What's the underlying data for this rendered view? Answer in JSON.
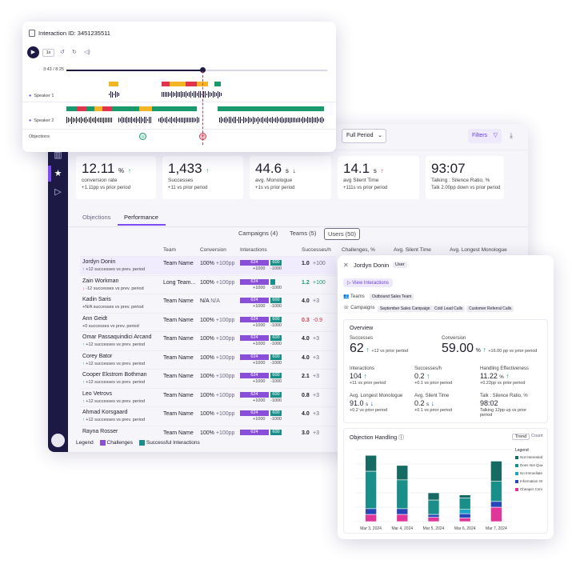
{
  "player": {
    "title": "Interaction ID: 3451235511",
    "speed": "1x",
    "time": "3:43 / 8:25",
    "speaker1": "Speaker 1",
    "speaker2": "Speaker 2",
    "objections_label": "Objections",
    "progress": 0.52
  },
  "toolbar": {
    "period": "Full Period",
    "filters": "Filters"
  },
  "kpis": [
    {
      "value": "12.11",
      "unit": "%",
      "arrow": "↑",
      "trend": "up",
      "label": "conversion rate",
      "delta": "+1.11pp vs prior period"
    },
    {
      "value": "1,433",
      "unit": "",
      "arrow": "↑",
      "trend": "up",
      "label": "Successes",
      "delta": "+11 vs prior period"
    },
    {
      "value": "44.6",
      "unit": "s",
      "arrow": "↓",
      "trend": "down",
      "label": "avg. Monologue",
      "delta": "+1s vs prior period"
    },
    {
      "value": "14.1",
      "unit": "s",
      "arrow": "↑",
      "trend": "bad",
      "label": "avg Silent Time",
      "delta": "+111s vs prior period"
    },
    {
      "value": "93:07",
      "unit": "",
      "arrow": "",
      "trend": "",
      "label": "Talking : Silence Ratio, %",
      "delta": "Talk 2.00pp down vs prior period"
    }
  ],
  "tabs": {
    "objections": "Objections",
    "performance": "Performance"
  },
  "segments": {
    "campaigns": "Campaigns (4)",
    "teams": "Teams (5)",
    "users": "Users (50)"
  },
  "table": {
    "headers": {
      "team": "Team",
      "conversion": "Conversion",
      "interactions": "Interactions",
      "successes": "Successes/h",
      "challenges": "Challenges, %",
      "silent": "Avg. Silent Time",
      "longest": "Avg. Longest Monologue"
    },
    "rows": [
      {
        "name": "Jordyn Donin",
        "arrow": "↑",
        "sub": "+12 successes vs prev. period",
        "team": "Team Name",
        "conv": "100%",
        "conv_d": "+100pp",
        "b1": "624",
        "b2": "600",
        "b1d": "+1000",
        "b2d": "-1000",
        "succ": "1.0",
        "succ_d": "+100",
        "succ_c": "",
        "sel": true
      },
      {
        "name": "Zain Workman",
        "arrow": "↓",
        "sub": "-12 successes vs prev. period",
        "team": "Long Team...",
        "conv": "100%",
        "conv_d": "+100pp",
        "b1": "624",
        "b2": "",
        "b1d": "+1000",
        "b2d": "-1000",
        "succ": "1.2",
        "succ_d": "+100",
        "succ_c": "up",
        "sel": false
      },
      {
        "name": "Kadin Saris",
        "arrow": "",
        "sub": "+N/A successes vs prev. period",
        "team": "Team Name",
        "conv": "N/A",
        "conv_d": "N/A",
        "b1": "624",
        "b2": "600",
        "b1d": "+1000",
        "b2d": "-1000",
        "succ": "4.0",
        "succ_d": "+3",
        "succ_c": "",
        "sel": false
      },
      {
        "name": "Ann Geidt",
        "arrow": "",
        "sub": "+0 successes vs prev. period",
        "team": "Team Name",
        "conv": "100%",
        "conv_d": "+100pp",
        "b1": "624",
        "b2": "600",
        "b1d": "+1000",
        "b2d": "-1000",
        "succ": "0.3",
        "succ_d": "-0.9",
        "succ_c": "bad",
        "sel": false
      },
      {
        "name": "Omar Passaquindici Arcand",
        "arrow": "↑",
        "sub": "+12 successes vs prev. period",
        "team": "Team Name",
        "conv": "100%",
        "conv_d": "+100pp",
        "b1": "624",
        "b2": "600",
        "b1d": "+1000",
        "b2d": "-1000",
        "succ": "4.0",
        "succ_d": "+3",
        "succ_c": "",
        "sel": false
      },
      {
        "name": "Corey Bator",
        "arrow": "↑",
        "sub": "+12 successes vs prev. period",
        "team": "Team Name",
        "conv": "100%",
        "conv_d": "+100pp",
        "b1": "624",
        "b2": "600",
        "b1d": "+1000",
        "b2d": "-1000",
        "succ": "4.0",
        "succ_d": "+3",
        "succ_c": "",
        "sel": false
      },
      {
        "name": "Cooper Ekstrom Bothman",
        "arrow": "↑",
        "sub": "+12 successes vs prev. period",
        "team": "Team Name",
        "conv": "100%",
        "conv_d": "+100pp",
        "b1": "624",
        "b2": "600",
        "b1d": "+1000",
        "b2d": "-1000",
        "succ": "2.1",
        "succ_d": "+3",
        "succ_c": "",
        "sel": false
      },
      {
        "name": "Leo Vetrovs",
        "arrow": "↑",
        "sub": "+12 successes vs prev. period",
        "team": "Team Name",
        "conv": "100%",
        "conv_d": "+100pp",
        "b1": "624",
        "b2": "600",
        "b1d": "+1000",
        "b2d": "-1000",
        "succ": "0.8",
        "succ_d": "+3",
        "succ_c": "",
        "sel": false
      },
      {
        "name": "Ahmad Korsgaard",
        "arrow": "↑",
        "sub": "+12 successes vs prev. period",
        "team": "Team Name",
        "conv": "100%",
        "conv_d": "+100pp",
        "b1": "624",
        "b2": "600",
        "b1d": "+1000",
        "b2d": "-1000",
        "succ": "4.0",
        "succ_d": "+3",
        "succ_c": "",
        "sel": false
      },
      {
        "name": "Rayna Rosser",
        "arrow": "",
        "sub": "",
        "team": "Team Name",
        "conv": "100%",
        "conv_d": "+100pp",
        "b1": "624",
        "b2": "600",
        "b1d": "",
        "b2d": "",
        "succ": "3.0",
        "succ_d": "+3",
        "succ_c": "",
        "sel": false
      }
    ]
  },
  "legend": {
    "title": "Legend",
    "challenges": "Challenges",
    "successful": "Successful Interactions"
  },
  "panel": {
    "name": "Jordyn Donin",
    "badge": "User",
    "view": "View Interactions",
    "teams_label": "Teams",
    "team": "Outbound Sales Team",
    "campaigns_label": "Campaigns",
    "campaigns": [
      "September Sales Campaign",
      "Cold Lead Calls",
      "Customer Referral Calls"
    ],
    "overview": {
      "title": "Overview",
      "successes": {
        "label": "Successes",
        "value": "62",
        "arrow": "↑",
        "delta": "+12 vs prior period"
      },
      "conversion": {
        "label": "Conversion",
        "value": "59.00",
        "unit": "%",
        "arrow": "↑",
        "delta": "+16.00 pp vs prior period"
      },
      "interactions": {
        "label": "Interactions",
        "value": "104",
        "arrow": "↑",
        "delta": "+11 vs prior period"
      },
      "succ_h": {
        "label": "Successes/h",
        "value": "0.2",
        "arrow": "↑",
        "delta": "+0.1 vs prior period"
      },
      "handling": {
        "label": "Handling Effectiveness",
        "value": "11.22",
        "unit": "%",
        "arrow": "↑",
        "delta": "+0.22pp vs prior period"
      },
      "monologue": {
        "label": "Avg. Longest Monologue",
        "value": "91.0",
        "unit": "s",
        "arrow": "↓",
        "delta": "+0.2 vs prior period"
      },
      "silent": {
        "label": "Avg. Silent Time",
        "value": "0.2",
        "unit": "s",
        "arrow": "↓",
        "delta": "+0.1 vs prior period"
      },
      "ratio": {
        "label": "Talk : Silence Ratio, %",
        "value": "98:02",
        "delta": "Talking 12pp up vs prior period"
      }
    },
    "objection": {
      "title": "Objection Handling",
      "trend": "Trend",
      "count": "Count",
      "legend_title": "Legend",
      "legend": [
        "Not Interested",
        "Does Not Qua",
        "No Immediate",
        "Information Or",
        "Cheaper Com"
      ]
    }
  },
  "chart_data": {
    "type": "bar",
    "stacked": true,
    "categories": [
      "Mar 3, 2024",
      "Mar 4, 2024",
      "Mar 5, 2024",
      "Mar 6, 2024",
      "Mar 7, 2024"
    ],
    "ylim": [
      0,
      100
    ],
    "grid": true,
    "legend": "right",
    "series": [
      {
        "name": "Cheaper Com",
        "color": "#e0369a",
        "values": [
          10,
          10,
          6,
          5,
          20
        ]
      },
      {
        "name": "Information Or",
        "color": "#2747b8",
        "values": [
          8,
          8,
          4,
          6,
          8
        ]
      },
      {
        "name": "No Immediate",
        "color": "#1aa6c7",
        "values": [
          0,
          0,
          0,
          6,
          0
        ]
      },
      {
        "name": "Does Not Qua",
        "color": "#1a8f8a",
        "values": [
          52,
          40,
          20,
          16,
          28
        ]
      },
      {
        "name": "Not Interested",
        "color": "#156b63",
        "values": [
          22,
          20,
          10,
          4,
          28
        ]
      }
    ]
  }
}
